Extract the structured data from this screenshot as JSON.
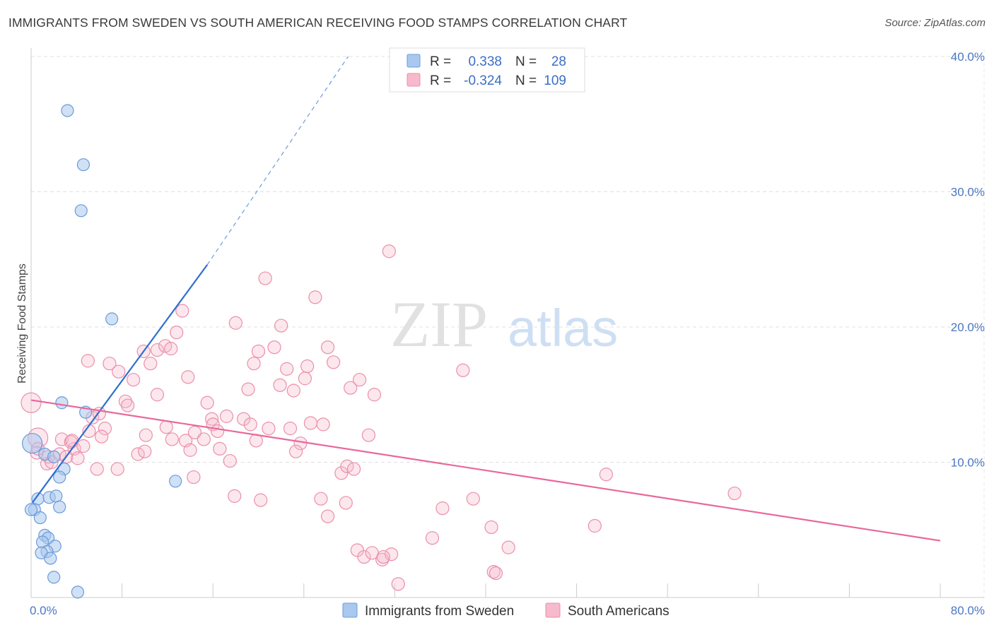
{
  "title": "IMMIGRANTS FROM SWEDEN VS SOUTH AMERICAN RECEIVING FOOD STAMPS CORRELATION CHART",
  "source": "Source: ZipAtlas.com",
  "watermark": {
    "zip": "ZIP",
    "atlas": "atlas"
  },
  "legend": {
    "r_label": "R =",
    "n_label": "N =",
    "rows": [
      {
        "r": "0.338",
        "n": "28"
      },
      {
        "r": "-0.324",
        "n": "109"
      }
    ]
  },
  "colors": {
    "blue_fill": "#a9c8ef",
    "blue_stroke": "#6b9bd8",
    "blue_line": "#2f6fcf",
    "pink_fill": "#f7b9cc",
    "pink_stroke": "#ea8fac",
    "pink_line": "#e8689a",
    "tick_text": "#4a77c4"
  },
  "chart_data": {
    "type": "scatter",
    "title": "IMMIGRANTS FROM SWEDEN VS SOUTH AMERICAN RECEIVING FOOD STAMPS CORRELATION CHART",
    "xlabel": "",
    "ylabel": "Receiving Food Stamps",
    "xlim": [
      0,
      80
    ],
    "ylim": [
      0,
      40
    ],
    "x_tick_labels": [
      "0.0%",
      "80.0%"
    ],
    "y_tick_labels": [
      "10.0%",
      "20.0%",
      "30.0%",
      "40.0%"
    ],
    "y_ticks": [
      10,
      20,
      30,
      40
    ],
    "grid": true,
    "legend_position": "bottom",
    "series": [
      {
        "name": "Immigrants from Sweden",
        "r": 0.338,
        "n": 28,
        "trend": {
          "x": [
            0.1,
            15.5
          ],
          "y": [
            7.0,
            24.6
          ],
          "extend_to": [
            27.9,
            40.0
          ]
        },
        "points": [
          [
            3.2,
            36.0
          ],
          [
            4.6,
            32.0
          ],
          [
            4.4,
            28.6
          ],
          [
            7.1,
            20.6
          ],
          [
            2.7,
            14.4
          ],
          [
            4.8,
            13.7
          ],
          [
            0.1,
            11.4
          ],
          [
            1.2,
            10.6
          ],
          [
            2.0,
            10.4
          ],
          [
            2.9,
            9.5
          ],
          [
            2.5,
            8.9
          ],
          [
            12.7,
            8.6
          ],
          [
            0.6,
            7.3
          ],
          [
            1.6,
            7.4
          ],
          [
            2.2,
            7.5
          ],
          [
            2.5,
            6.7
          ],
          [
            0.3,
            6.5
          ],
          [
            0.8,
            5.9
          ],
          [
            1.2,
            4.6
          ],
          [
            1.5,
            4.4
          ],
          [
            1.0,
            4.1
          ],
          [
            2.1,
            3.8
          ],
          [
            1.4,
            3.4
          ],
          [
            0.9,
            3.3
          ],
          [
            1.7,
            2.9
          ],
          [
            2.0,
            1.5
          ],
          [
            4.1,
            0.4
          ],
          [
            0.0,
            6.5
          ]
        ]
      },
      {
        "name": "South Americans",
        "r": -0.324,
        "n": 109,
        "trend": {
          "x": [
            0.0,
            80.0
          ],
          "y": [
            14.6,
            4.2
          ]
        },
        "points": [
          [
            0.0,
            14.4
          ],
          [
            0.6,
            11.8
          ],
          [
            0.5,
            10.7
          ],
          [
            1.5,
            10.4
          ],
          [
            1.4,
            9.9
          ],
          [
            2.5,
            10.6
          ],
          [
            3.1,
            10.4
          ],
          [
            3.8,
            11.0
          ],
          [
            2.7,
            11.7
          ],
          [
            3.5,
            11.5
          ],
          [
            4.6,
            11.2
          ],
          [
            5.1,
            12.3
          ],
          [
            5.4,
            13.3
          ],
          [
            6.0,
            13.6
          ],
          [
            5.0,
            17.5
          ],
          [
            6.9,
            17.3
          ],
          [
            7.7,
            16.7
          ],
          [
            8.3,
            14.5
          ],
          [
            8.5,
            14.2
          ],
          [
            9.0,
            16.1
          ],
          [
            6.5,
            12.5
          ],
          [
            6.2,
            11.9
          ],
          [
            5.8,
            9.5
          ],
          [
            7.6,
            9.5
          ],
          [
            9.4,
            10.6
          ],
          [
            10.0,
            10.8
          ],
          [
            10.1,
            12.0
          ],
          [
            9.9,
            18.2
          ],
          [
            10.5,
            17.3
          ],
          [
            11.1,
            18.3
          ],
          [
            11.8,
            18.6
          ],
          [
            12.3,
            18.4
          ],
          [
            12.8,
            19.6
          ],
          [
            13.3,
            21.2
          ],
          [
            11.1,
            15.0
          ],
          [
            11.9,
            12.6
          ],
          [
            12.4,
            11.7
          ],
          [
            13.6,
            11.6
          ],
          [
            14.4,
            12.2
          ],
          [
            15.2,
            11.7
          ],
          [
            14.0,
            10.9
          ],
          [
            14.3,
            8.9
          ],
          [
            13.8,
            16.3
          ],
          [
            15.5,
            14.4
          ],
          [
            15.9,
            13.2
          ],
          [
            16.0,
            12.8
          ],
          [
            16.4,
            12.3
          ],
          [
            17.2,
            13.4
          ],
          [
            16.6,
            11.0
          ],
          [
            17.5,
            10.1
          ],
          [
            17.9,
            7.5
          ],
          [
            18.0,
            20.3
          ],
          [
            19.1,
            15.4
          ],
          [
            18.7,
            13.2
          ],
          [
            19.3,
            12.8
          ],
          [
            19.8,
            11.6
          ],
          [
            19.6,
            17.3
          ],
          [
            20.0,
            18.2
          ],
          [
            20.6,
            23.6
          ],
          [
            21.4,
            18.5
          ],
          [
            20.9,
            12.5
          ],
          [
            21.9,
            15.7
          ],
          [
            22.5,
            16.9
          ],
          [
            22.0,
            20.1
          ],
          [
            23.1,
            15.3
          ],
          [
            22.8,
            12.5
          ],
          [
            23.7,
            11.4
          ],
          [
            23.3,
            10.8
          ],
          [
            24.1,
            16.2
          ],
          [
            24.3,
            17.1
          ],
          [
            24.6,
            12.9
          ],
          [
            25.0,
            22.2
          ],
          [
            20.2,
            7.2
          ],
          [
            25.7,
            12.8
          ],
          [
            25.5,
            7.3
          ],
          [
            26.1,
            18.5
          ],
          [
            26.6,
            17.4
          ],
          [
            26.1,
            6.0
          ],
          [
            27.3,
            9.2
          ],
          [
            27.8,
            9.7
          ],
          [
            28.1,
            15.5
          ],
          [
            28.9,
            16.1
          ],
          [
            28.4,
            9.5
          ],
          [
            27.7,
            7.0
          ],
          [
            28.7,
            3.5
          ],
          [
            29.3,
            3.0
          ],
          [
            29.7,
            12.0
          ],
          [
            30.2,
            15.0
          ],
          [
            30.0,
            3.3
          ],
          [
            30.9,
            2.8
          ],
          [
            31.7,
            3.2
          ],
          [
            31.5,
            25.6
          ],
          [
            32.3,
            1.0
          ],
          [
            31.0,
            3.0
          ],
          [
            35.3,
            4.4
          ],
          [
            36.2,
            6.6
          ],
          [
            38.0,
            16.8
          ],
          [
            38.9,
            7.3
          ],
          [
            40.5,
            5.2
          ],
          [
            40.7,
            1.9
          ],
          [
            40.9,
            1.8
          ],
          [
            42.0,
            3.7
          ],
          [
            49.6,
            5.3
          ],
          [
            50.6,
            9.1
          ],
          [
            61.9,
            7.7
          ],
          [
            1.8,
            10.0
          ],
          [
            4.1,
            10.3
          ],
          [
            3.6,
            11.6
          ],
          [
            0.6,
            11.0
          ]
        ]
      }
    ]
  }
}
